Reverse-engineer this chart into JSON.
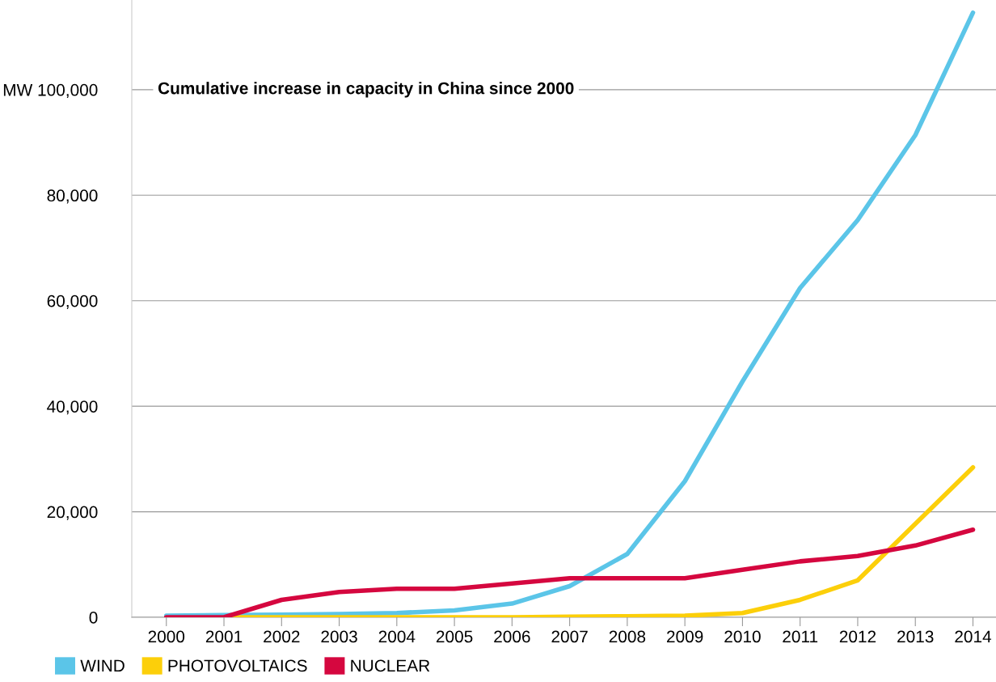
{
  "chart_data": {
    "type": "line",
    "title": "Cumulative increase in capacity in China since 2000",
    "x": [
      2000,
      2001,
      2002,
      2003,
      2004,
      2005,
      2006,
      2007,
      2008,
      2009,
      2010,
      2011,
      2012,
      2013,
      2014
    ],
    "series": [
      {
        "name": "WIND",
        "color": "#5bc5e8",
        "values": [
          300,
          400,
          500,
          600,
          800,
          1300,
          2600,
          5900,
          12000,
          25800,
          44700,
          62400,
          75300,
          91400,
          114600
        ]
      },
      {
        "name": "PHOTOVOLTAICS",
        "color": "#fccf0a",
        "values": [
          null,
          0,
          0,
          0,
          0,
          0,
          0,
          100,
          200,
          300,
          800,
          3300,
          7000,
          17700,
          28400
        ]
      },
      {
        "name": "NUCLEAR",
        "color": "#d5073f",
        "values": [
          0,
          0,
          3300,
          4800,
          5400,
          5400,
          6400,
          7400,
          7400,
          7400,
          9000,
          10600,
          11600,
          13600,
          16600
        ]
      }
    ],
    "xlim": [
      1999.4,
      2014.4
    ],
    "xticks": [
      2000,
      2001,
      2002,
      2003,
      2004,
      2005,
      2006,
      2007,
      2008,
      2009,
      2010,
      2011,
      2012,
      2013,
      2014
    ],
    "ylim": [
      0,
      117000
    ],
    "yticks": [
      0,
      {
        "value": 20000,
        "label": "20,000"
      },
      {
        "value": 40000,
        "label": "40,000"
      },
      {
        "value": 60000,
        "label": "60,000"
      },
      {
        "value": 80000,
        "label": "80,000"
      },
      {
        "value": 100000,
        "label": "MW 100,000"
      }
    ],
    "grid": "y",
    "legend": "bottom left",
    "marker": "none",
    "line_style": "solid"
  }
}
